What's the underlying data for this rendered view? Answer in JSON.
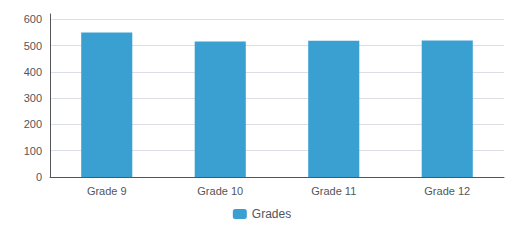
{
  "chart_data": {
    "type": "bar",
    "categories": [
      "Grade 9",
      "Grade 10",
      "Grade 11",
      "Grade 12"
    ],
    "series": [
      {
        "name": "Grades",
        "color": "#3a9fd1",
        "values": [
          550,
          515,
          518,
          519
        ]
      }
    ],
    "ylim": [
      0,
      620
    ],
    "yticks": [
      0,
      100,
      200,
      300,
      400,
      500,
      600
    ],
    "grid": true,
    "legend": "bottom"
  }
}
